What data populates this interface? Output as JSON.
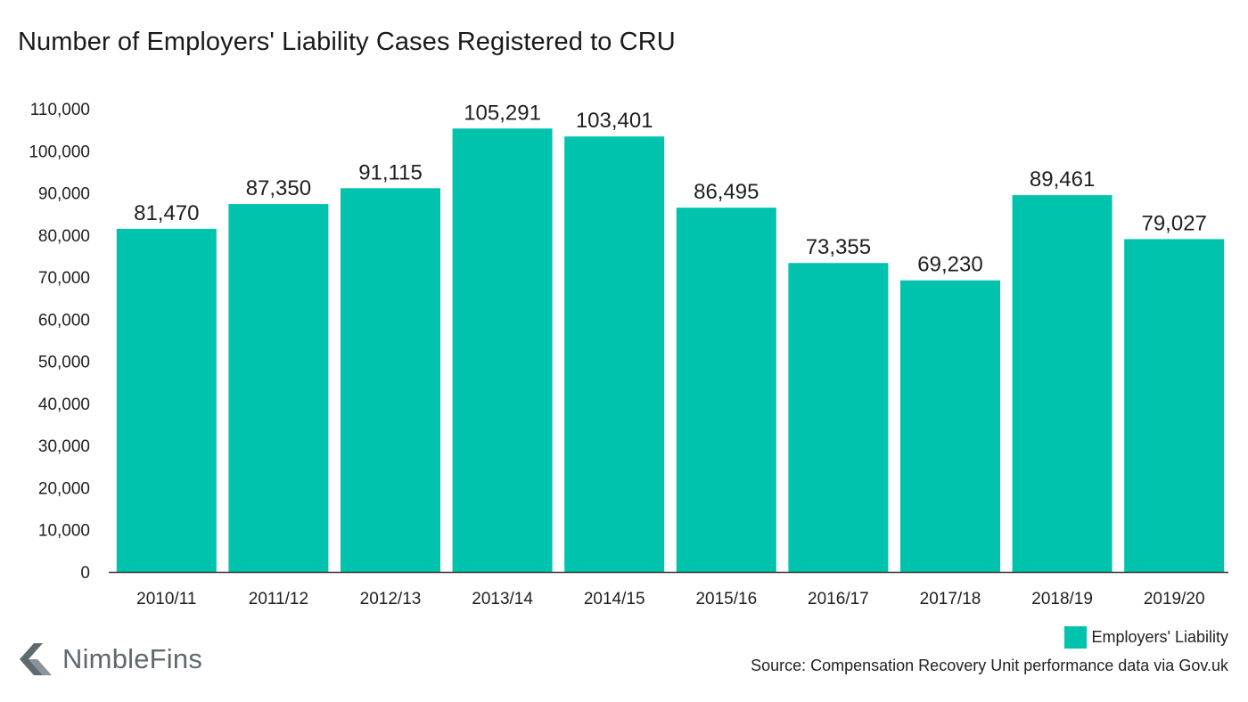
{
  "title": "Number of Employers' Liability Cases Registered to CRU",
  "chart_data": {
    "type": "bar",
    "categories": [
      "2010/11",
      "2011/12",
      "2012/13",
      "2013/14",
      "2014/15",
      "2015/16",
      "2016/17",
      "2017/18",
      "2018/19",
      "2019/20"
    ],
    "series": [
      {
        "name": "Employers' Liability",
        "values": [
          81470,
          87350,
          91115,
          105291,
          103401,
          86495,
          73355,
          69230,
          89461,
          79027
        ],
        "data_labels": [
          "81,470",
          "87,350",
          "91,115",
          "105,291",
          "103,401",
          "86,495",
          "73,355",
          "69,230",
          "89,461",
          "79,027"
        ]
      }
    ],
    "yticks": [
      0,
      10000,
      20000,
      30000,
      40000,
      50000,
      60000,
      70000,
      80000,
      90000,
      100000,
      110000
    ],
    "ytick_labels": [
      "0",
      "10,000",
      "20,000",
      "30,000",
      "40,000",
      "50,000",
      "60,000",
      "70,000",
      "80,000",
      "90,000",
      "100,000",
      "110,000"
    ],
    "ylim": [
      0,
      110000
    ],
    "grid": false,
    "legend_position": "bottom-right"
  },
  "colors": {
    "bar": "#00c3ae",
    "axis": "#333333",
    "text": "#1f1f1f"
  },
  "legend": {
    "label": "Employers' Liability"
  },
  "source": "Source: Compensation Recovery Unit performance data via Gov.uk",
  "brand": {
    "name": "NimbleFins",
    "icon": "nimblefins-arrow-logo"
  }
}
